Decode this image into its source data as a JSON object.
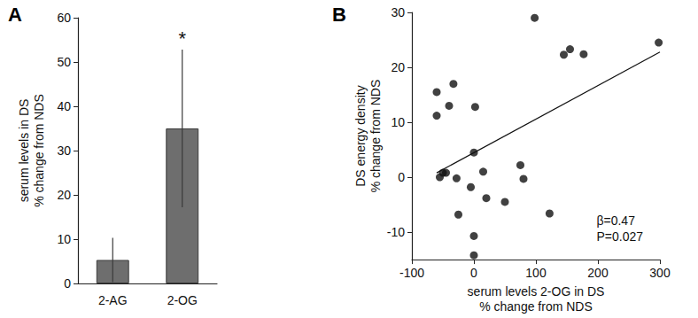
{
  "chart_data": [
    {
      "type": "bar",
      "title": "A",
      "y_label": "serum levels in DS\n% change from NDS",
      "categories": [
        "2-AG",
        "2-OG"
      ],
      "values": [
        5.3,
        35
      ],
      "error": [
        5.0,
        17.8
      ],
      "color": "#6e6e6e",
      "ylim": [
        0,
        60
      ],
      "yticks": [
        0,
        10,
        20,
        30,
        40,
        50,
        60
      ],
      "grid": false,
      "annotations": [
        {
          "text": "*",
          "category": "2-OG"
        }
      ]
    },
    {
      "type": "scatter",
      "title": "B",
      "x_label": "serum levels 2-OG in DS\n% change from NDS",
      "y_label": "DS energy density\n% change from NDS",
      "x": [
        -60,
        -60,
        -55,
        -50,
        -45,
        -40,
        -33,
        -28,
        -25,
        -5,
        0,
        2,
        0,
        0,
        15,
        20,
        50,
        75,
        80,
        98,
        122,
        145,
        155,
        177,
        298
      ],
      "values": [
        15.5,
        11.2,
        0,
        0.8,
        0.8,
        13,
        17,
        -0.2,
        -6.8,
        -1.8,
        4.5,
        12.8,
        -10.7,
        -14.2,
        1,
        -3.8,
        -4.5,
        2.2,
        -0.3,
        29,
        -6.6,
        22.3,
        23.3,
        22.4,
        24.5
      ],
      "color": "#111111",
      "marker": "circle",
      "fit": {
        "x": [
          -60,
          300
        ],
        "y": [
          0.8,
          22.8
        ],
        "color": "#111111",
        "line_style": "solid"
      },
      "xlim": [
        -100,
        300
      ],
      "xticks": [
        -100,
        0,
        100,
        200,
        300
      ],
      "ylim": [
        -15,
        30
      ],
      "yticks": [
        -10,
        0,
        10,
        20,
        30
      ],
      "grid": false,
      "annotations": [
        "β=0.47",
        "P=0.027"
      ]
    }
  ]
}
